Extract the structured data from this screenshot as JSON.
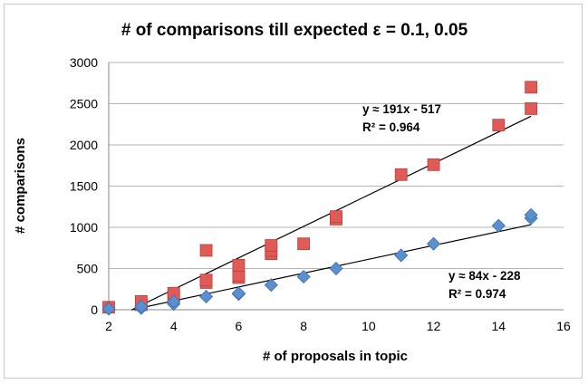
{
  "chart_data": {
    "type": "scatter",
    "title": "# of comparisons till expected ε = 0.1, 0.05",
    "xlabel": "# of proposals in topic",
    "ylabel": "# comparisons",
    "xlim": [
      2,
      16
    ],
    "ylim": [
      0,
      3000
    ],
    "x_ticks": [
      "2",
      "4",
      "6",
      "8",
      "10",
      "12",
      "14",
      "16"
    ],
    "y_ticks": [
      "0",
      "500",
      "1000",
      "1500",
      "2000",
      "2500",
      "3000"
    ],
    "grid": "horizontal",
    "legend": "none",
    "series": [
      {
        "marker": "square",
        "color": "#e05a57",
        "points": [
          [
            2,
            30
          ],
          [
            3,
            60
          ],
          [
            3,
            100
          ],
          [
            4,
            160
          ],
          [
            4,
            200
          ],
          [
            5,
            330
          ],
          [
            5,
            360
          ],
          [
            5,
            720
          ],
          [
            6,
            390
          ],
          [
            6,
            420
          ],
          [
            6,
            540
          ],
          [
            7,
            680
          ],
          [
            7,
            720
          ],
          [
            7,
            780
          ],
          [
            8,
            800
          ],
          [
            9,
            1100
          ],
          [
            9,
            1130
          ],
          [
            11,
            1640
          ],
          [
            12,
            1760
          ],
          [
            14,
            2240
          ],
          [
            15,
            2440
          ],
          [
            15,
            2700
          ]
        ],
        "trendline": {
          "slope": 191,
          "intercept": -517,
          "x_from": 2.75,
          "x_to": 15
        }
      },
      {
        "marker": "diamond",
        "color": "#5a8fd0",
        "points": [
          [
            2,
            10
          ],
          [
            3,
            20
          ],
          [
            3,
            40
          ],
          [
            4,
            70
          ],
          [
            4,
            100
          ],
          [
            5,
            160
          ],
          [
            6,
            190
          ],
          [
            6,
            200
          ],
          [
            7,
            300
          ],
          [
            8,
            400
          ],
          [
            9,
            500
          ],
          [
            11,
            660
          ],
          [
            12,
            800
          ],
          [
            14,
            1020
          ],
          [
            15,
            1110
          ],
          [
            15,
            1150
          ]
        ],
        "trendline": {
          "slope": 84,
          "intercept": -228,
          "x_from": 2.7,
          "x_to": 15
        }
      }
    ],
    "annotations": [
      {
        "text": "y ≈ 191x - 517"
      },
      {
        "text": "R² = 0.964"
      },
      {
        "text": "y ≈ 84x - 228"
      },
      {
        "text": "R² = 0.974"
      }
    ]
  }
}
